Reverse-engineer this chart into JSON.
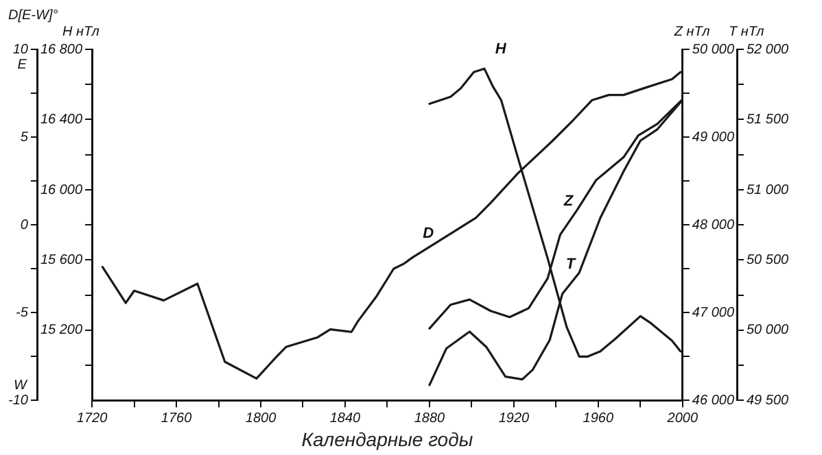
{
  "chart_data": [
    {
      "type": "line",
      "xlabel": "Календарные годы",
      "ylabel": "D[E-W]°",
      "y2label": "H нТл",
      "y3label": "Z нТл",
      "annotations": [
        "E",
        "W"
      ],
      "xlim": [
        1720,
        2000
      ],
      "xticks": [
        1720,
        {
          "value": 1740,
          "label": null
        },
        1760,
        {
          "value": 1780,
          "label": null
        },
        1800,
        {
          "value": 1820,
          "label": null
        },
        1840,
        {
          "value": 1860,
          "label": null
        },
        1880,
        {
          "value": 1900,
          "label": null
        },
        1920,
        {
          "value": 1940,
          "label": null
        },
        1960,
        {
          "value": 1980,
          "label": null
        },
        2000
      ],
      "ylim": [
        -10,
        10
      ],
      "yticks": [
        -10,
        {
          "value": -7.5,
          "label": null
        },
        -5,
        {
          "value": -2.5,
          "label": null
        },
        0,
        {
          "value": 2.5,
          "label": null
        },
        5,
        {
          "value": 7.5,
          "label": null
        },
        10
      ],
      "y2lim": [
        14800,
        16800
      ],
      "y2ticks": [
        {
          "value": 15000,
          "label": null
        },
        {
          "value": 15200,
          "label": "15 200"
        },
        {
          "value": 15400,
          "label": null
        },
        {
          "value": 15600,
          "label": "15 600"
        },
        {
          "value": 15800,
          "label": null
        },
        {
          "value": 16000,
          "label": "16 000"
        },
        {
          "value": 16200,
          "label": null
        },
        {
          "value": 16400,
          "label": "16 400"
        },
        {
          "value": 16600,
          "label": null
        },
        {
          "value": 16800,
          "label": "16 800"
        }
      ],
      "y3lim": [
        46000,
        50000
      ],
      "y3ticks": [
        {
          "value": 46000,
          "label": "46 000"
        },
        {
          "value": 46500,
          "label": null
        },
        {
          "value": 47000,
          "label": "47 000"
        },
        {
          "value": 47500,
          "label": null
        },
        {
          "value": 48000,
          "label": "48 000"
        },
        {
          "value": 48500,
          "label": null
        },
        {
          "value": 49000,
          "label": "49 000"
        },
        {
          "value": 49500,
          "label": null
        },
        {
          "value": 50000,
          "label": "50 000"
        }
      ],
      "grid": false,
      "legend": false,
      "marker": "none",
      "line_style": "solid",
      "series": [
        {
          "name": "D",
          "color": "#1a1a1a",
          "x": [
            1725,
            1736,
            1740,
            1754,
            1770,
            1783,
            1798,
            1806,
            1812,
            1827,
            1833,
            1843,
            1846,
            1855,
            1863,
            1868,
            1872,
            1884,
            1902,
            1909,
            1922,
            1938,
            1948,
            1957,
            1965,
            1972,
            1982,
            1995,
            1999
          ],
          "values": [
            -2.4,
            -4.45,
            -3.75,
            -4.3,
            -3.35,
            -7.8,
            -8.75,
            -7.7,
            -6.95,
            -6.4,
            -5.95,
            -6.1,
            -5.5,
            -4.05,
            -2.5,
            -2.2,
            -1.85,
            -0.95,
            0.4,
            1.25,
            2.95,
            4.75,
            5.95,
            7.1,
            7.4,
            7.4,
            7.8,
            8.3,
            8.7
          ]
        },
        {
          "name": "H",
          "color": "#1a1a1a",
          "axis": "y2",
          "x": [
            1880,
            1890,
            1895,
            1901,
            1906,
            1910,
            1914,
            1922,
            1936,
            1945,
            1951,
            1955,
            1961,
            1968,
            1980,
            1985,
            1995,
            1999
          ],
          "values": [
            16490,
            16530,
            16580,
            16670,
            16690,
            16590,
            16510,
            16180,
            15610,
            15220,
            15050,
            15050,
            15080,
            15150,
            15280,
            15240,
            15140,
            15080
          ]
        },
        {
          "name": "Z",
          "color": "#1a1a1a",
          "axis": "y3",
          "x": [
            1880,
            1890,
            1899,
            1909,
            1918,
            1927,
            1936,
            1942,
            1950,
            1959,
            1972,
            1979,
            1988,
            2000
          ],
          "values": [
            46820,
            47090,
            47150,
            47020,
            46950,
            47050,
            47390,
            47890,
            48170,
            48510,
            48770,
            49020,
            49150,
            49430
          ]
        }
      ]
    },
    {
      "type": "line",
      "ylabel": "T нТл",
      "xlim": [
        1720,
        2000
      ],
      "tick_labels": "y",
      "ylim": [
        49500,
        52000
      ],
      "yticks": [
        {
          "value": 49500,
          "label": "49 500"
        },
        {
          "value": 49750,
          "label": null
        },
        {
          "value": 50000,
          "label": "50 000"
        },
        {
          "value": 50250,
          "label": null
        },
        {
          "value": 50500,
          "label": "50 500"
        },
        {
          "value": 50750,
          "label": null
        },
        {
          "value": 51000,
          "label": "51 000"
        },
        {
          "value": 51250,
          "label": null
        },
        {
          "value": 51500,
          "label": "51 500"
        },
        {
          "value": 51750,
          "label": null
        },
        {
          "value": 52000,
          "label": "52 000"
        }
      ],
      "grid": false,
      "legend": false,
      "marker": "none",
      "line_style": "solid",
      "series": [
        {
          "name": "T",
          "color": "#1a1a1a",
          "x": [
            1880,
            1888,
            1899,
            1907,
            1916,
            1924,
            1929,
            1937,
            1943,
            1951,
            1961,
            1972,
            1980,
            1988,
            2000
          ],
          "values": [
            49610,
            49870,
            49990,
            49880,
            49670,
            49650,
            49720,
            49930,
            50260,
            50410,
            50800,
            51130,
            51350,
            51430,
            51640
          ]
        }
      ]
    }
  ]
}
